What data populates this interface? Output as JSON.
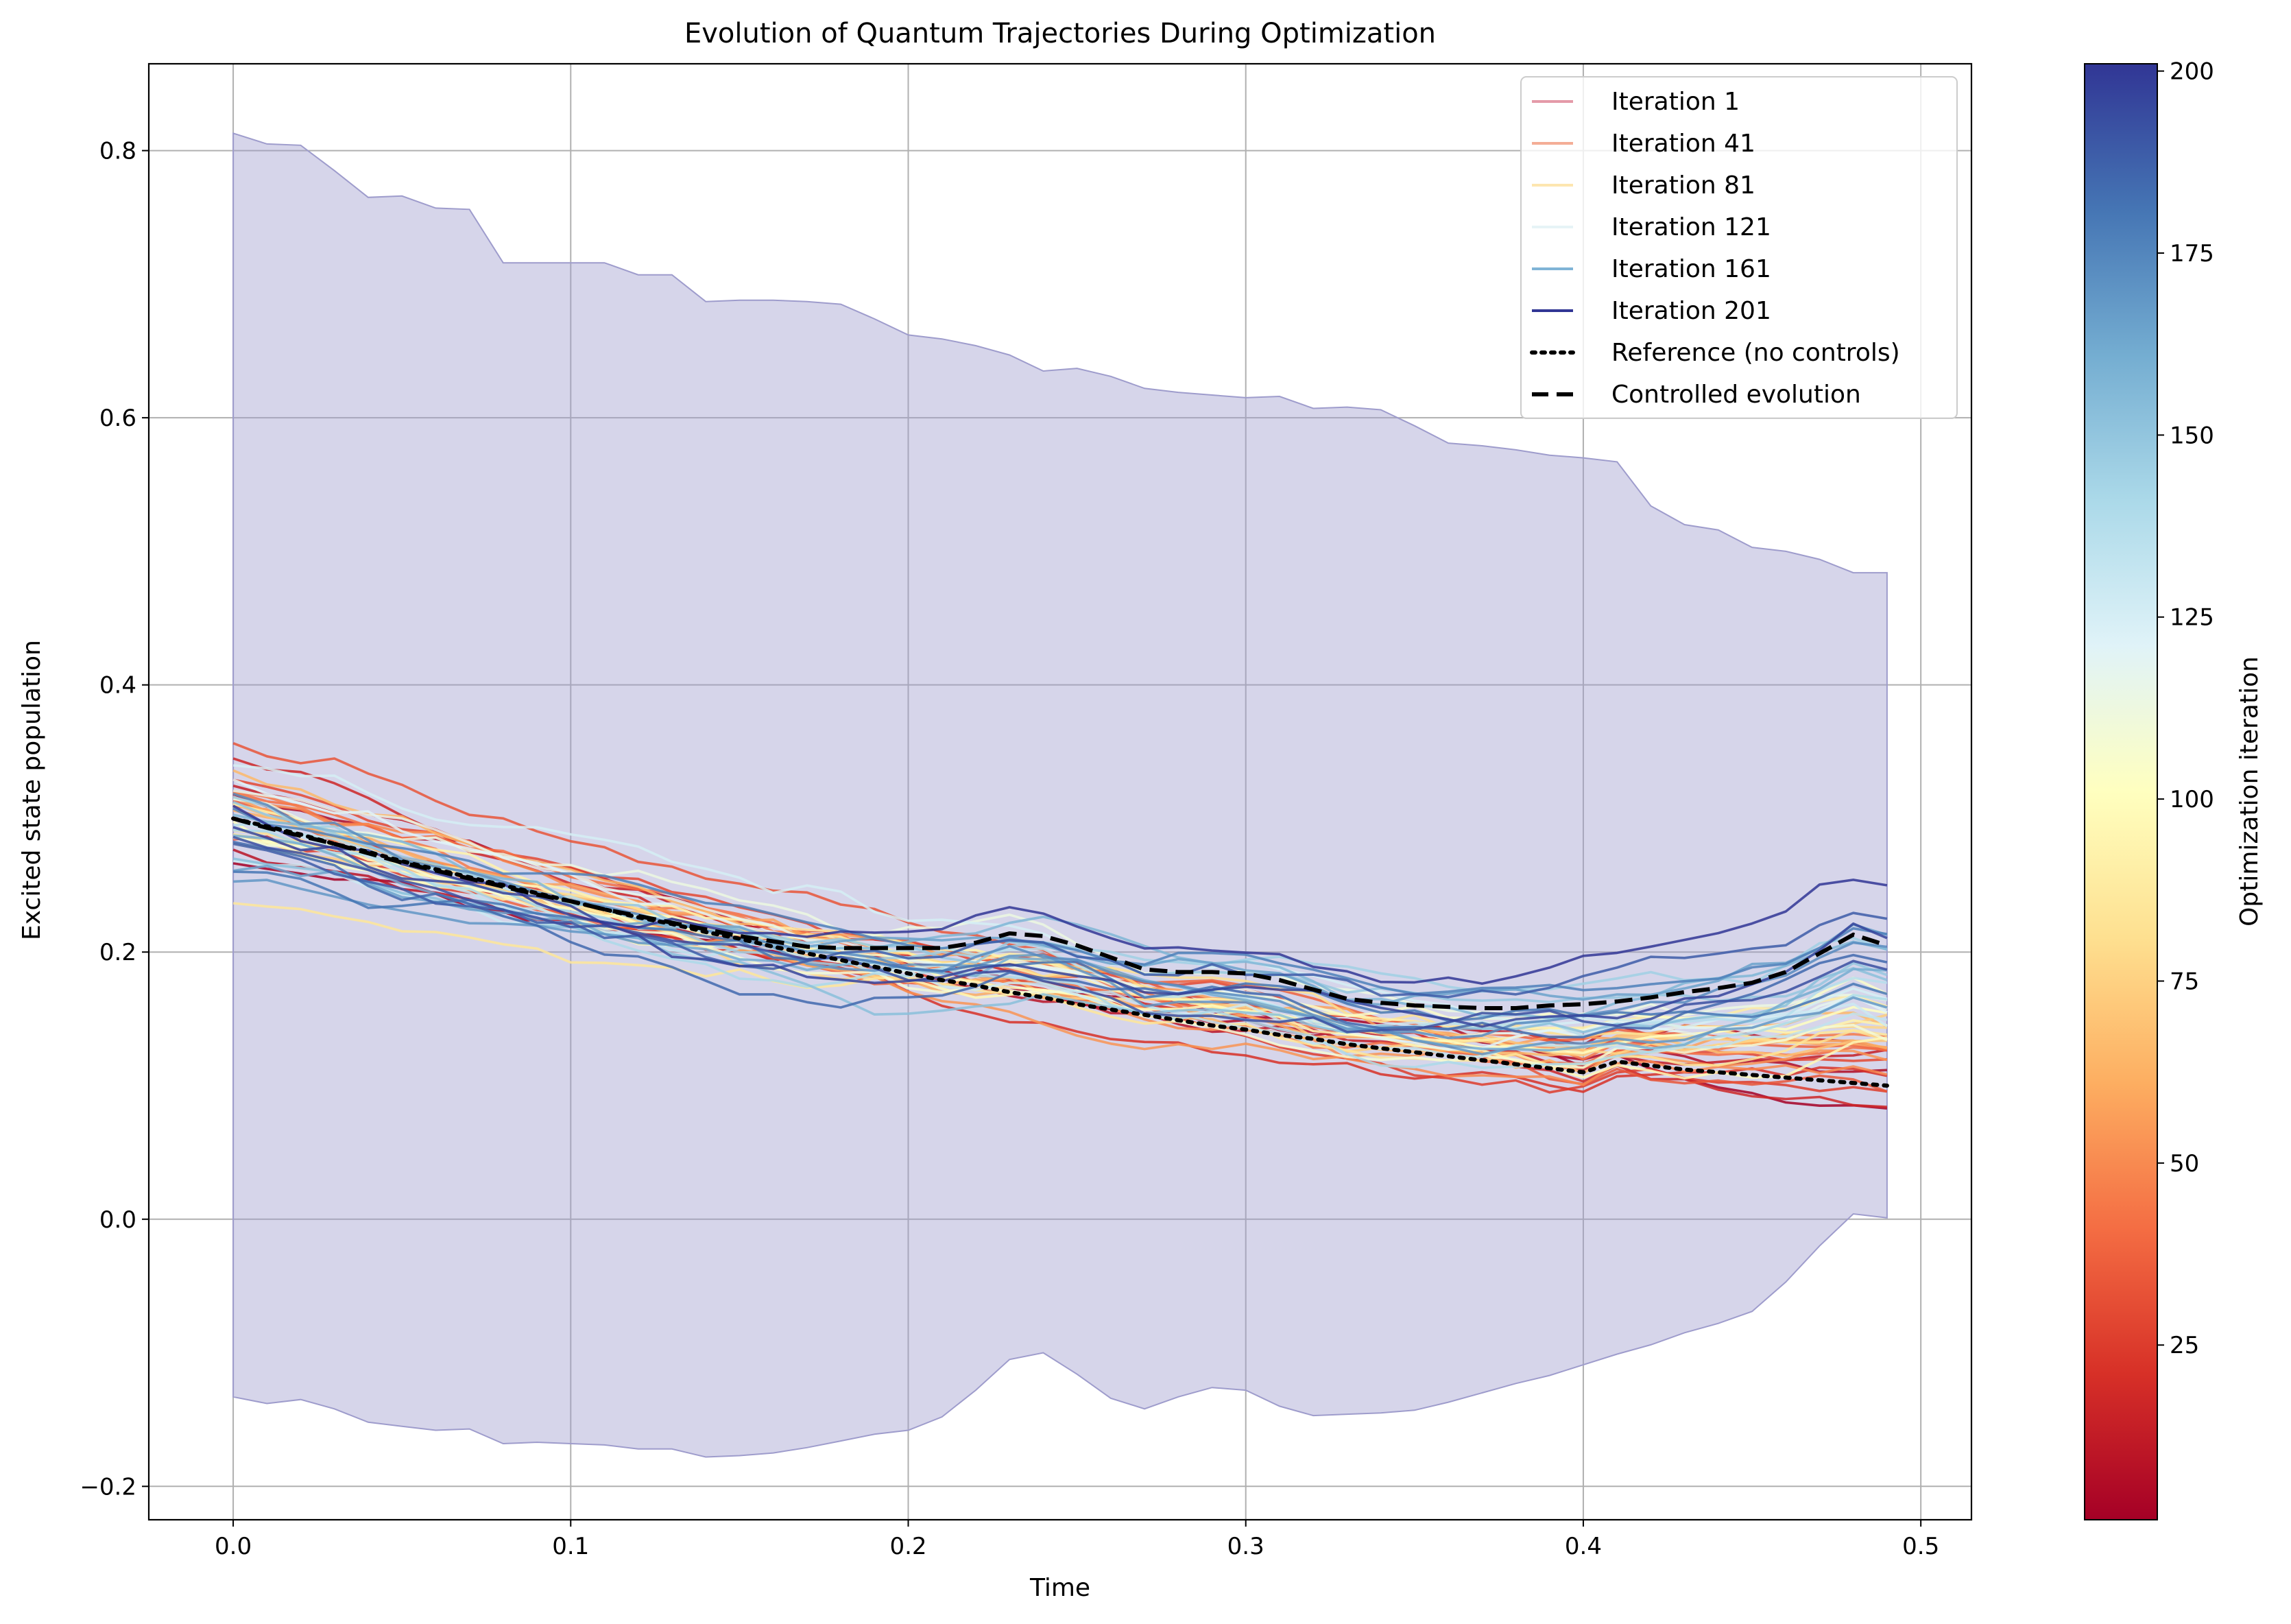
{
  "chart_data": {
    "type": "line",
    "title": "Evolution of Quantum Trajectories During Optimization",
    "xlabel": "Time",
    "ylabel": "Excited state population",
    "xlim": [
      -0.025,
      0.515
    ],
    "ylim": [
      -0.225,
      0.865
    ],
    "xticks": [
      "0.0",
      "0.1",
      "0.2",
      "0.3",
      "0.4",
      "0.5"
    ],
    "xtick_values": [
      0.0,
      0.1,
      0.2,
      0.3,
      0.4,
      0.5
    ],
    "yticks": [
      "−0.2",
      "0.0",
      "0.2",
      "0.4",
      "0.6",
      "0.8"
    ],
    "ytick_values": [
      -0.2,
      0.0,
      0.2,
      0.4,
      0.6,
      0.8
    ],
    "grid": true,
    "legend_position": "top-right",
    "time": [
      0.0,
      0.01,
      0.02,
      0.03,
      0.04,
      0.05,
      0.06,
      0.07,
      0.08,
      0.09,
      0.1,
      0.11,
      0.12,
      0.13,
      0.14,
      0.15,
      0.16,
      0.17,
      0.18,
      0.19,
      0.2,
      0.21,
      0.22,
      0.23,
      0.24,
      0.25,
      0.26,
      0.27,
      0.28,
      0.29,
      0.3,
      0.31,
      0.32,
      0.33,
      0.34,
      0.35,
      0.36,
      0.37,
      0.38,
      0.39,
      0.4,
      0.41,
      0.42,
      0.43,
      0.44,
      0.45,
      0.46,
      0.47,
      0.48,
      0.49
    ],
    "band": {
      "color": "#9e9ccc",
      "upper": [
        0.813,
        0.805,
        0.804,
        0.785,
        0.765,
        0.766,
        0.757,
        0.756,
        0.716,
        0.716,
        0.716,
        0.716,
        0.707,
        0.707,
        0.687,
        0.688,
        0.688,
        0.687,
        0.685,
        0.674,
        0.662,
        0.659,
        0.654,
        0.647,
        0.635,
        0.637,
        0.631,
        0.622,
        0.619,
        0.617,
        0.615,
        0.616,
        0.607,
        0.608,
        0.606,
        0.594,
        0.581,
        0.579,
        0.576,
        0.572,
        0.57,
        0.567,
        0.534,
        0.52,
        0.516,
        0.503,
        0.5,
        0.494,
        0.484,
        0.484
      ],
      "lower": [
        -0.133,
        -0.138,
        -0.135,
        -0.142,
        -0.152,
        -0.155,
        -0.158,
        -0.157,
        -0.168,
        -0.167,
        -0.168,
        -0.169,
        -0.172,
        -0.172,
        -0.178,
        -0.177,
        -0.175,
        -0.171,
        -0.166,
        -0.161,
        -0.158,
        -0.148,
        -0.128,
        -0.105,
        -0.1,
        -0.116,
        -0.134,
        -0.142,
        -0.133,
        -0.126,
        -0.128,
        -0.14,
        -0.147,
        -0.146,
        -0.145,
        -0.143,
        -0.137,
        -0.13,
        -0.123,
        -0.117,
        -0.109,
        -0.101,
        -0.094,
        -0.085,
        -0.078,
        -0.069,
        -0.047,
        -0.02,
        0.004,
        0.001
      ]
    },
    "reference": {
      "name": "Reference (no controls)",
      "values": [
        0.3,
        0.294,
        0.288,
        0.281,
        0.275,
        0.268,
        0.262,
        0.256,
        0.25,
        0.244,
        0.238,
        0.232,
        0.226,
        0.221,
        0.215,
        0.21,
        0.204,
        0.199,
        0.194,
        0.189,
        0.184,
        0.179,
        0.175,
        0.17,
        0.166,
        0.161,
        0.157,
        0.153,
        0.149,
        0.145,
        0.142,
        0.138,
        0.135,
        0.131,
        0.128,
        0.125,
        0.122,
        0.119,
        0.116,
        0.113,
        0.11,
        0.118,
        0.115,
        0.112,
        0.11,
        0.108,
        0.106,
        0.104,
        0.102,
        0.1
      ]
    },
    "controlled": {
      "name": "Controlled evolution",
      "values": [
        0.3,
        0.293,
        0.287,
        0.281,
        0.274,
        0.267,
        0.261,
        0.255,
        0.249,
        0.243,
        0.238,
        0.232,
        0.227,
        0.222,
        0.217,
        0.212,
        0.208,
        0.204,
        0.203,
        0.203,
        0.203,
        0.203,
        0.207,
        0.214,
        0.212,
        0.205,
        0.196,
        0.187,
        0.185,
        0.185,
        0.184,
        0.179,
        0.172,
        0.165,
        0.162,
        0.16,
        0.159,
        0.158,
        0.158,
        0.16,
        0.161,
        0.163,
        0.166,
        0.17,
        0.173,
        0.177,
        0.185,
        0.199,
        0.213,
        0.205
      ]
    },
    "iterations": {
      "colormap": "RdYlBu",
      "count": 201,
      "drawn_every": 4,
      "legend_entries": [
        {
          "name": "Iteration 1",
          "color": "#e49aa8"
        },
        {
          "name": "Iteration 41",
          "color": "#f4ad96"
        },
        {
          "name": "Iteration 81",
          "color": "#fde6b0"
        },
        {
          "name": "Iteration 121",
          "color": "#e6f4f6"
        },
        {
          "name": "Iteration 161",
          "color": "#7fb4d6"
        },
        {
          "name": "Iteration 201",
          "color": "#313695"
        }
      ]
    },
    "colorbar": {
      "label": "Optimization iteration",
      "min": 1,
      "max": 201,
      "ticks": [
        "25",
        "50",
        "75",
        "100",
        "125",
        "150",
        "175",
        "200"
      ],
      "tick_values": [
        25,
        50,
        75,
        100,
        125,
        150,
        175,
        200
      ],
      "stops": [
        "#a50026",
        "#d73027",
        "#f46d43",
        "#fdae61",
        "#fee090",
        "#ffffbf",
        "#e0f3f8",
        "#abd9e9",
        "#74add1",
        "#4575b4",
        "#313695"
      ]
    }
  }
}
